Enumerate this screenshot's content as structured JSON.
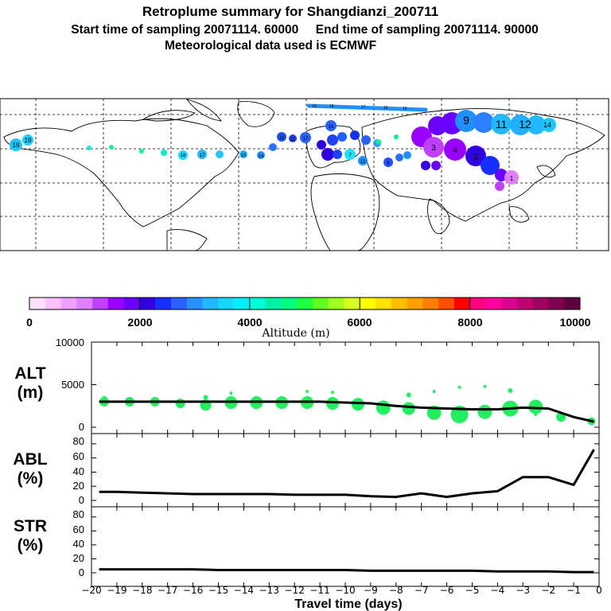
{
  "header": {
    "title": "Retroplume summary for Shangdianzi_200711",
    "subtitle": "Start time of sampling 20071114. 60000     End time of sampling 20071114. 90000",
    "meteo": "Meteorological data used is ECMWF"
  },
  "colorbar": {
    "label": "Altitude (m)",
    "ticks": [
      "0",
      "2000",
      "4000",
      "6000",
      "8000",
      "10000"
    ],
    "colors": [
      "#ffe0ff",
      "#ffc0ff",
      "#f0a0ff",
      "#e080ff",
      "#c040ff",
      "#9a00ff",
      "#6a00ff",
      "#3000e0",
      "#1530ff",
      "#2a60ff",
      "#2890ff",
      "#20b8ff",
      "#18d8ff",
      "#00f0ff",
      "#00ffd8",
      "#00f0a8",
      "#00ff80",
      "#20ff40",
      "#60ff20",
      "#a0ff20",
      "#d8ff20",
      "#ffff00",
      "#ffe000",
      "#ffc000",
      "#ffa000",
      "#ff8000",
      "#ff5000",
      "#ff0000",
      "#ff0080",
      "#ff00a0",
      "#e00090",
      "#c00070",
      "#a00060",
      "#800050",
      "#600040"
    ]
  },
  "map": {
    "plume_labels": [
      "19",
      "18",
      "17",
      "16",
      "15",
      "14",
      "13",
      "12",
      "11",
      "10",
      "9",
      "8",
      "7",
      "6",
      "5",
      "4",
      "3",
      "2",
      "1"
    ]
  },
  "xaxis": {
    "label": "Travel time (days)",
    "ticks": [
      "−20",
      "−19",
      "−18",
      "−17",
      "−16",
      "−15",
      "−14",
      "−13",
      "−12",
      "−11",
      "−10",
      "−9",
      "−8",
      "−7",
      "−6",
      "−5",
      "−4",
      "−3",
      "−2",
      "−1",
      "0"
    ]
  },
  "chart_data": [
    {
      "type": "line",
      "name": "ALT",
      "ylabel_line1": "ALT",
      "ylabel_line2": "(m)",
      "yticks": [
        "10000",
        "5000",
        "0"
      ],
      "ylim": [
        0,
        10000
      ],
      "x": [
        -19.7,
        -19,
        -18,
        -17,
        -16,
        -15,
        -14,
        -13,
        -12,
        -11,
        -10,
        -9,
        -8,
        -7,
        -6,
        -5,
        -4,
        -3,
        -2,
        -1,
        -0.2
      ],
      "values": [
        3000,
        3000,
        3000,
        3000,
        3000,
        3000,
        3000,
        3000,
        3000,
        3000,
        2900,
        2800,
        2500,
        2300,
        2200,
        2100,
        2100,
        2300,
        2200,
        1200,
        650
      ],
      "cluster_points": [
        {
          "x": -19.5,
          "y": 3000,
          "s": 6
        },
        {
          "x": -18.5,
          "y": 3000,
          "s": 6
        },
        {
          "x": -17.5,
          "y": 3000,
          "s": 6
        },
        {
          "x": -16.5,
          "y": 2800,
          "s": 6
        },
        {
          "x": -15.5,
          "y": 2600,
          "s": 7
        },
        {
          "x": -14.5,
          "y": 2900,
          "s": 8
        },
        {
          "x": -13.5,
          "y": 2900,
          "s": 8
        },
        {
          "x": -12.5,
          "y": 2900,
          "s": 8
        },
        {
          "x": -11.5,
          "y": 2900,
          "s": 8
        },
        {
          "x": -10.5,
          "y": 2800,
          "s": 8
        },
        {
          "x": -9.5,
          "y": 2700,
          "s": 8
        },
        {
          "x": -8.5,
          "y": 2300,
          "s": 9
        },
        {
          "x": -7.5,
          "y": 2200,
          "s": 8
        },
        {
          "x": -6.5,
          "y": 1700,
          "s": 9
        },
        {
          "x": -5.5,
          "y": 1500,
          "s": 11
        },
        {
          "x": -4.5,
          "y": 1800,
          "s": 9
        },
        {
          "x": -3.5,
          "y": 2200,
          "s": 10
        },
        {
          "x": -2.5,
          "y": 2400,
          "s": 9
        },
        {
          "x": -1.5,
          "y": 1200,
          "s": 6
        },
        {
          "x": -0.3,
          "y": 700,
          "s": 5
        },
        {
          "x": -19.5,
          "y": 3400,
          "s": 3
        },
        {
          "x": -15.5,
          "y": 3500,
          "s": 3
        },
        {
          "x": -14.5,
          "y": 4000,
          "s": 2
        },
        {
          "x": -11.5,
          "y": 4200,
          "s": 2
        },
        {
          "x": -10.5,
          "y": 4100,
          "s": 2
        },
        {
          "x": -7.5,
          "y": 3800,
          "s": 3
        },
        {
          "x": -6.5,
          "y": 4200,
          "s": 2
        },
        {
          "x": -5.5,
          "y": 4700,
          "s": 2
        },
        {
          "x": -4.5,
          "y": 4800,
          "s": 2
        },
        {
          "x": -3.5,
          "y": 4300,
          "s": 3
        },
        {
          "x": -2.5,
          "y": 1500,
          "s": 2
        }
      ]
    },
    {
      "type": "line",
      "name": "ABL",
      "ylabel_line1": "ABL",
      "ylabel_line2": "(%)",
      "yticks": [
        "80",
        "60",
        "40",
        "20",
        "0"
      ],
      "ylim": [
        0,
        90
      ],
      "x": [
        -19.7,
        -19,
        -18,
        -17,
        -16,
        -15,
        -14,
        -13,
        -12,
        -11,
        -10,
        -9,
        -8,
        -7,
        -6,
        -5,
        -4,
        -3,
        -2,
        -1,
        -0.2
      ],
      "values": [
        12,
        12,
        11,
        10,
        9,
        9,
        9,
        9,
        8,
        8,
        8,
        6,
        5,
        10,
        5,
        10,
        13,
        33,
        33,
        22,
        72
      ]
    },
    {
      "type": "line",
      "name": "STR",
      "ylabel_line1": "STR",
      "ylabel_line2": "(%)",
      "yticks": [
        "80",
        "60",
        "40",
        "20",
        "0"
      ],
      "ylim": [
        0,
        90
      ],
      "x": [
        -19.7,
        -19,
        -18,
        -17,
        -16,
        -15,
        -14,
        -13,
        -12,
        -11,
        -10,
        -9,
        -8,
        -7,
        -6,
        -5,
        -4,
        -3,
        -2,
        -1,
        -0.2
      ],
      "values": [
        5,
        5,
        5,
        5,
        5,
        4,
        4,
        4,
        4,
        4,
        4,
        3,
        3,
        3,
        3,
        3,
        2,
        2,
        2,
        1,
        1
      ]
    }
  ]
}
